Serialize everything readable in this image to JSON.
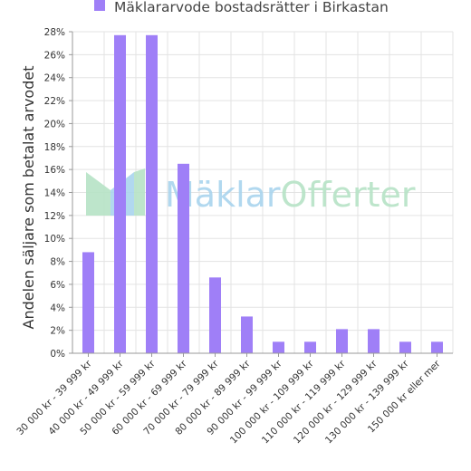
{
  "watermark": {
    "part1": "Mäklar",
    "part2": "Offerter",
    "color1": "#a9d4ee",
    "color2": "#b6e3c6"
  },
  "chart_data": {
    "type": "bar",
    "legend": {
      "label": "Mäklararvode bostadsrätter i Birkastan",
      "position": "top-center"
    },
    "ylabel": "Andelen säljare som betalat arvodet",
    "ylim": [
      0,
      28
    ],
    "yticks": [
      "0%",
      "2%",
      "4%",
      "6%",
      "8%",
      "10%",
      "12%",
      "14%",
      "16%",
      "18%",
      "20%",
      "22%",
      "24%",
      "26%",
      "28%"
    ],
    "grid": true,
    "bar_color": "#9f7ff7",
    "categories": [
      "30 000 kr - 39 999 kr",
      "40 000 kr - 49 999 kr",
      "50 000 kr - 59 999 kr",
      "60 000 kr - 69 999 kr",
      "70 000 kr - 79 999 kr",
      "80 000 kr - 89 999 kr",
      "90 000 kr - 99 999 kr",
      "100 000 kr - 109 999 kr",
      "110 000 kr - 119 999 kr",
      "120 000 kr - 129 999 kr",
      "130 000 kr - 139 999 kr",
      "150 000 kr eller mer"
    ],
    "values": [
      8.8,
      27.7,
      27.7,
      16.5,
      6.6,
      3.2,
      1.0,
      1.0,
      2.1,
      2.1,
      1.0,
      1.0
    ]
  }
}
